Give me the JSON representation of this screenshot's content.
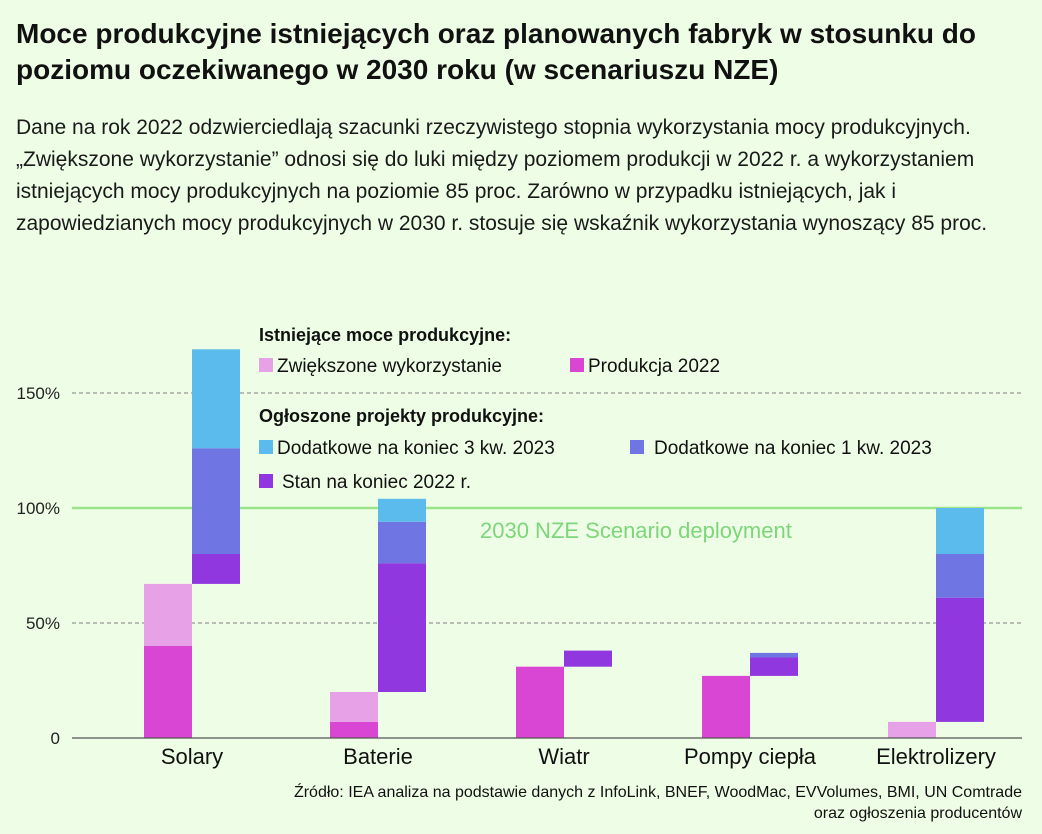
{
  "title": "Moce produkcyjne istniejących oraz planowanych fabryk w stosunku do poziomu oczekiwanego w 2030 roku (w scenariuszu NZE)",
  "subtitle": "Dane na rok 2022 odzwierciedlają szacunki rzeczywistego stopnia wykorzystania mocy produkcyjnych. „Zwiększone wykorzystanie” odnosi się do luki między poziomem produkcji w 2022 r. a wykorzystaniem istniejących mocy produkcyjnych na poziomie 85 proc. Zarówno w przypadku istniejących, jak i zapowiedzianych mocy produkcyjnych w 2030 r. stosuje się wskaźnik wykorzystania wynoszący 85 proc.",
  "source": {
    "line1": "Źródło: IEA analiza na podstawie danych z InfoLink, BNEF, WoodMac, EVVolumes, BMI, UN Comtrade",
    "line2": "oraz ogłoszenia producentów"
  },
  "colors": {
    "background": "#eefde6",
    "produkcja": "#d946d4",
    "zwiekszone": "#e7a1e6",
    "stan": "#9137e0",
    "dodatkowe_q1": "#6f76e3",
    "dodatkowe_q3": "#5bbbec",
    "nze_line": "#9be58b",
    "nze_text": "#7ed67a",
    "grid": "#7d7d7d",
    "axis": "#555555"
  },
  "chart_data": {
    "type": "bar",
    "stacked": true,
    "y_unit": "%",
    "ylim": [
      0,
      170
    ],
    "yticks": [
      {
        "value": 0,
        "label": "0"
      },
      {
        "value": 50,
        "label": "50%"
      },
      {
        "value": 100,
        "label": "100%"
      },
      {
        "value": 150,
        "label": "150%"
      }
    ],
    "categories": [
      "Solary",
      "Baterie",
      "Wiatr",
      "Pompy ciepła",
      "Elektrolizery"
    ],
    "reference_line": {
      "value": 100,
      "label": "2030 NZE Scenario deployment"
    },
    "legend": {
      "placement": "top-center",
      "group_existing": "Istniejące moce produkcyjne:",
      "group_announced": "Ogłoszone projekty produkcyjne:",
      "items": {
        "zwiekszone": "Zwiększone wykorzystanie",
        "produkcja": "Produkcja 2022",
        "dodatkowe_q3": "Dodatkowe na koniec 3 kw. 2023",
        "dodatkowe_q1": "Dodatkowe na koniec 1 kw. 2023",
        "stan": "Stan na koniec 2022 r."
      }
    },
    "existing": {
      "produkcja": [
        40,
        7,
        31,
        27,
        0
      ],
      "zwiekszone": [
        27,
        13,
        0,
        0,
        7
      ]
    },
    "announced": {
      "stan": [
        13,
        56,
        7,
        8,
        54
      ],
      "dodatkowe_q1": [
        46,
        18,
        0,
        2,
        19
      ],
      "dodatkowe_q3": [
        43,
        10,
        0,
        0,
        20
      ]
    }
  }
}
